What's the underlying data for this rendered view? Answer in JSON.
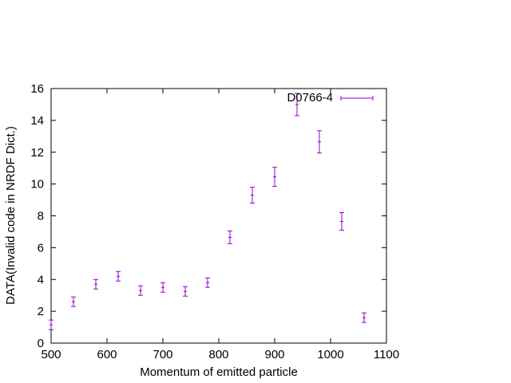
{
  "chart_data": {
    "type": "scatter",
    "title": "",
    "xlabel": "Momentum of emitted particle",
    "ylabel": "DATA(Invalid code in NRDF Dict.)",
    "xlim": [
      500,
      1100
    ],
    "ylim": [
      0,
      16
    ],
    "xticks": [
      "500",
      "600",
      "700",
      "800",
      "900",
      "1000",
      "1100"
    ],
    "yticks": [
      "0",
      "2",
      "4",
      "6",
      "8",
      "10",
      "12",
      "14",
      "16"
    ],
    "grid": false,
    "legend_position": "top-right",
    "series": [
      {
        "name": "D0766-4",
        "color": "#9400d3",
        "x": [
          500,
          540,
          580,
          620,
          660,
          700,
          740,
          780,
          820,
          860,
          900,
          940,
          980,
          1020,
          1060
        ],
        "y": [
          1.15,
          2.6,
          3.7,
          4.2,
          3.3,
          3.5,
          3.25,
          3.8,
          6.65,
          9.3,
          10.45,
          15.0,
          12.65,
          7.65,
          1.6
        ],
        "yerr": [
          0.3,
          0.3,
          0.3,
          0.3,
          0.3,
          0.3,
          0.3,
          0.3,
          0.4,
          0.5,
          0.6,
          0.7,
          0.7,
          0.55,
          0.3
        ]
      }
    ]
  }
}
